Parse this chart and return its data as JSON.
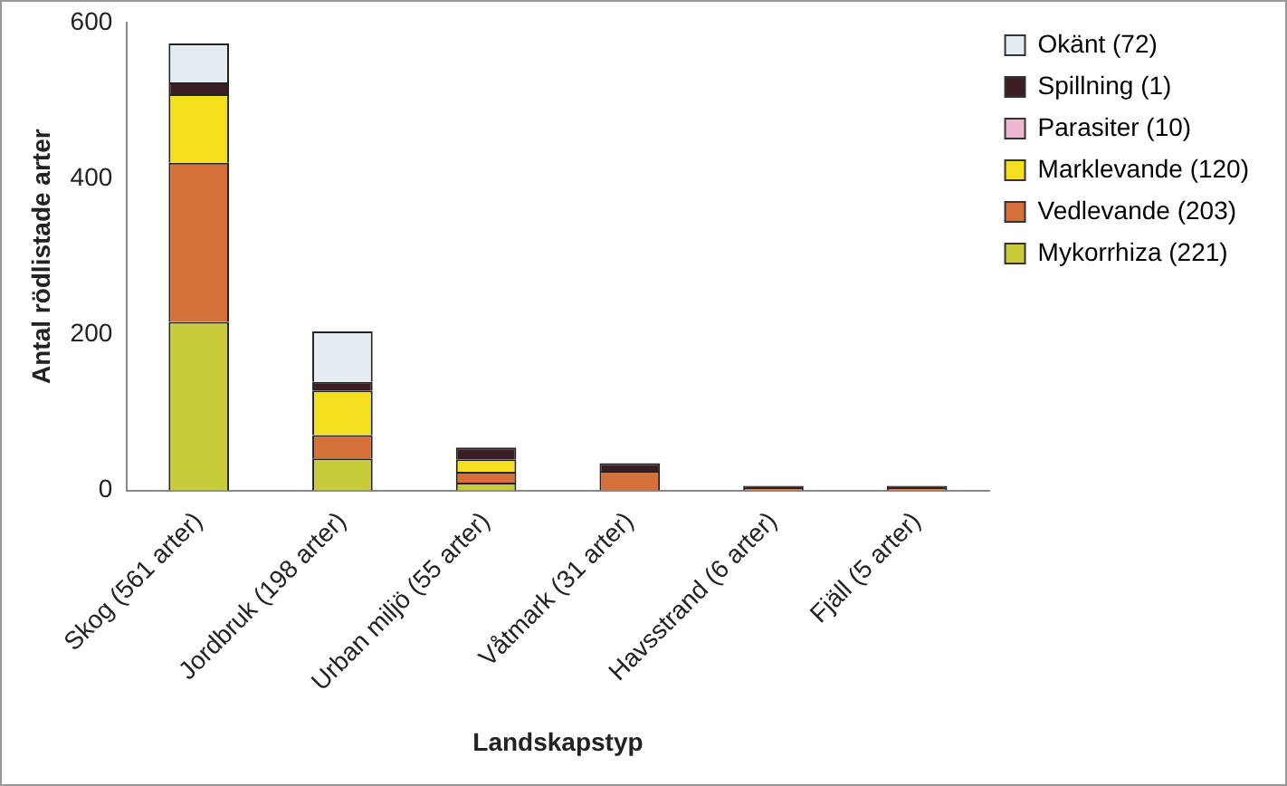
{
  "chart_data": {
    "type": "bar",
    "stacked": true,
    "xlabel": "Landskapstyp",
    "ylabel": "Antal rödlistade arter",
    "categories": [
      "Skog (561 arter)",
      "Jordbruk (198 arter)",
      "Urban miljö (55 arter)",
      "Våtmark (31 arter)",
      "Havsstrand (6 arter)",
      "Fjäll (5 arter)"
    ],
    "series": [
      {
        "name": "Mykorrhiza (221)",
        "color": "#c8cc3c",
        "values": [
          216,
          41,
          10,
          0,
          0,
          0
        ]
      },
      {
        "name": "Vedlevande (203)",
        "color": "#d6703a",
        "values": [
          204,
          30,
          14,
          25,
          3,
          3
        ]
      },
      {
        "name": "Marklevande (120)",
        "color": "#f5e020",
        "values": [
          88,
          57,
          16,
          0,
          0,
          0
        ]
      },
      {
        "name": "Parasiter (10)",
        "color": "#f0b8d0",
        "values": [
          0,
          0,
          0,
          0,
          0,
          0
        ]
      },
      {
        "name": "Spillning (1)",
        "color": "#3a1e24",
        "values": [
          15,
          11,
          15,
          10,
          3,
          3
        ]
      },
      {
        "name": "Okänt (72)",
        "color": "#e4ecf2",
        "values": [
          50,
          65,
          0,
          0,
          0,
          0
        ]
      }
    ],
    "ylim": [
      0,
      600
    ],
    "yticks": [
      0,
      200,
      400,
      600
    ],
    "grid": false,
    "legend": "top right"
  }
}
